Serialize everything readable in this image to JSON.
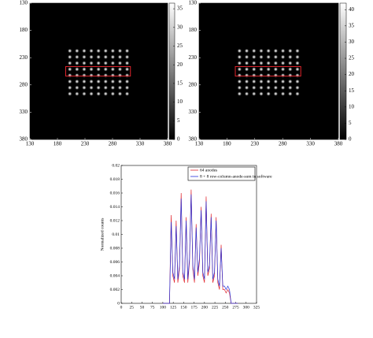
{
  "chart_data": [
    {
      "type": "image",
      "xlim": [
        130,
        380
      ],
      "xticks": [
        130,
        180,
        230,
        280,
        330,
        380
      ],
      "ylim": [
        130,
        380
      ],
      "yticks": [
        130,
        180,
        230,
        280,
        330,
        380
      ],
      "clim": [
        0,
        36.5
      ],
      "cticks": [
        0,
        5,
        10,
        15,
        20,
        25,
        30,
        35
      ]
    },
    {
      "type": "image",
      "xlim": [
        130,
        380
      ],
      "xticks": [
        130,
        180,
        230,
        280,
        330,
        380
      ],
      "ylim": [
        130,
        380
      ],
      "yticks": [
        130,
        180,
        230,
        280,
        330,
        380
      ],
      "clim": [
        0,
        42
      ],
      "cticks": [
        0,
        5,
        10,
        15,
        20,
        25,
        30,
        35,
        40
      ]
    },
    {
      "type": "line",
      "y_label": "Normalized counts",
      "xlim": [
        0,
        325
      ],
      "xticks": [
        0,
        25,
        50,
        75,
        100,
        125,
        150,
        175,
        200,
        225,
        250,
        275,
        300,
        325
      ],
      "ylim": [
        0,
        0.02
      ],
      "yticks": [
        0,
        0.002,
        0.004,
        0.006,
        0.008,
        0.01,
        0.012,
        0.014,
        0.016,
        0.018,
        0.02
      ],
      "x": [
        100,
        116,
        120,
        124,
        128,
        132,
        136,
        140,
        144,
        148,
        152,
        156,
        160,
        164,
        168,
        172,
        176,
        180,
        184,
        188,
        192,
        196,
        200,
        204,
        208,
        212,
        216,
        220,
        224,
        228,
        232,
        236,
        240,
        244,
        248,
        252,
        256,
        260,
        264,
        280
      ],
      "series": [
        {
          "name": "64 anodes",
          "color": "#e0242c",
          "values": [
            0,
            0,
            0.0128,
            0.004,
            0.003,
            0.012,
            0.003,
            0.005,
            0.016,
            0.004,
            0.003,
            0.0125,
            0.003,
            0.006,
            0.0165,
            0.005,
            0.003,
            0.0115,
            0.004,
            0.006,
            0.014,
            0.004,
            0.003,
            0.0155,
            0.004,
            0.005,
            0.013,
            0.003,
            0.004,
            0.0125,
            0.003,
            0.002,
            0.0085,
            0.002,
            0.002,
            0.0015,
            0.002,
            0.0015,
            0,
            0
          ]
        },
        {
          "name": "8 + 8 row-column-anode-sum in software",
          "color": "#2430d8",
          "values": [
            0,
            0,
            0.0118,
            0.0045,
            0.0035,
            0.0112,
            0.0035,
            0.0055,
            0.0152,
            0.0045,
            0.0035,
            0.012,
            0.0035,
            0.0065,
            0.0158,
            0.0055,
            0.0035,
            0.011,
            0.0045,
            0.0065,
            0.0135,
            0.0045,
            0.0035,
            0.0148,
            0.0045,
            0.0055,
            0.0125,
            0.0035,
            0.0045,
            0.012,
            0.0035,
            0.0025,
            0.008,
            0.0025,
            0.0025,
            0.002,
            0.0025,
            0.002,
            0,
            0
          ]
        }
      ]
    }
  ]
}
